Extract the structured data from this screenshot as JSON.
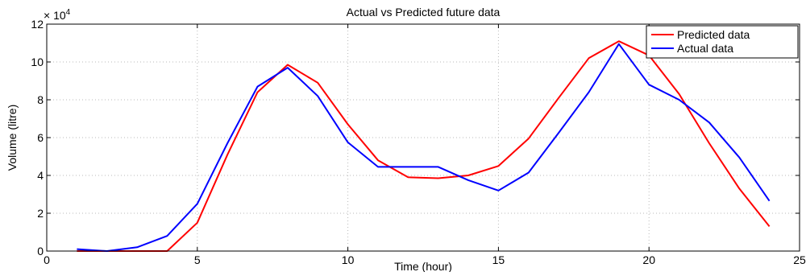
{
  "chart_data": {
    "type": "line",
    "title": "Actual vs Predicted future data",
    "xlabel": "Time (hour)",
    "ylabel": "Volume (litre)",
    "y_multiplier_label": "× 10",
    "y_multiplier_exponent": "4",
    "xlim": [
      0,
      25
    ],
    "ylim": [
      0,
      12
    ],
    "xticks": [
      0,
      5,
      10,
      15,
      20,
      25
    ],
    "yticks": [
      0,
      2,
      4,
      6,
      8,
      10,
      12
    ],
    "grid": true,
    "legend_position": "top-right",
    "x": [
      1,
      2,
      3,
      4,
      5,
      6,
      7,
      8,
      9,
      10,
      11,
      12,
      13,
      14,
      15,
      16,
      17,
      18,
      19,
      20,
      21,
      22,
      23,
      24
    ],
    "series": [
      {
        "name": "Predicted data",
        "color": "#ff0000",
        "values": [
          0,
          0,
          0,
          0,
          1.5,
          5.1,
          8.4,
          9.85,
          8.9,
          6.7,
          4.8,
          3.9,
          3.85,
          4.0,
          4.5,
          5.95,
          8.1,
          10.2,
          11.1,
          10.35,
          8.3,
          5.7,
          3.3,
          1.3
        ]
      },
      {
        "name": "Actual data",
        "color": "#0000ff",
        "values": [
          0.1,
          0,
          0.2,
          0.8,
          2.5,
          5.7,
          8.7,
          9.7,
          8.2,
          5.75,
          4.45,
          4.45,
          4.45,
          3.75,
          3.2,
          4.15,
          6.25,
          8.4,
          10.95,
          8.8,
          8.0,
          6.8,
          4.95,
          2.65
        ]
      }
    ]
  }
}
